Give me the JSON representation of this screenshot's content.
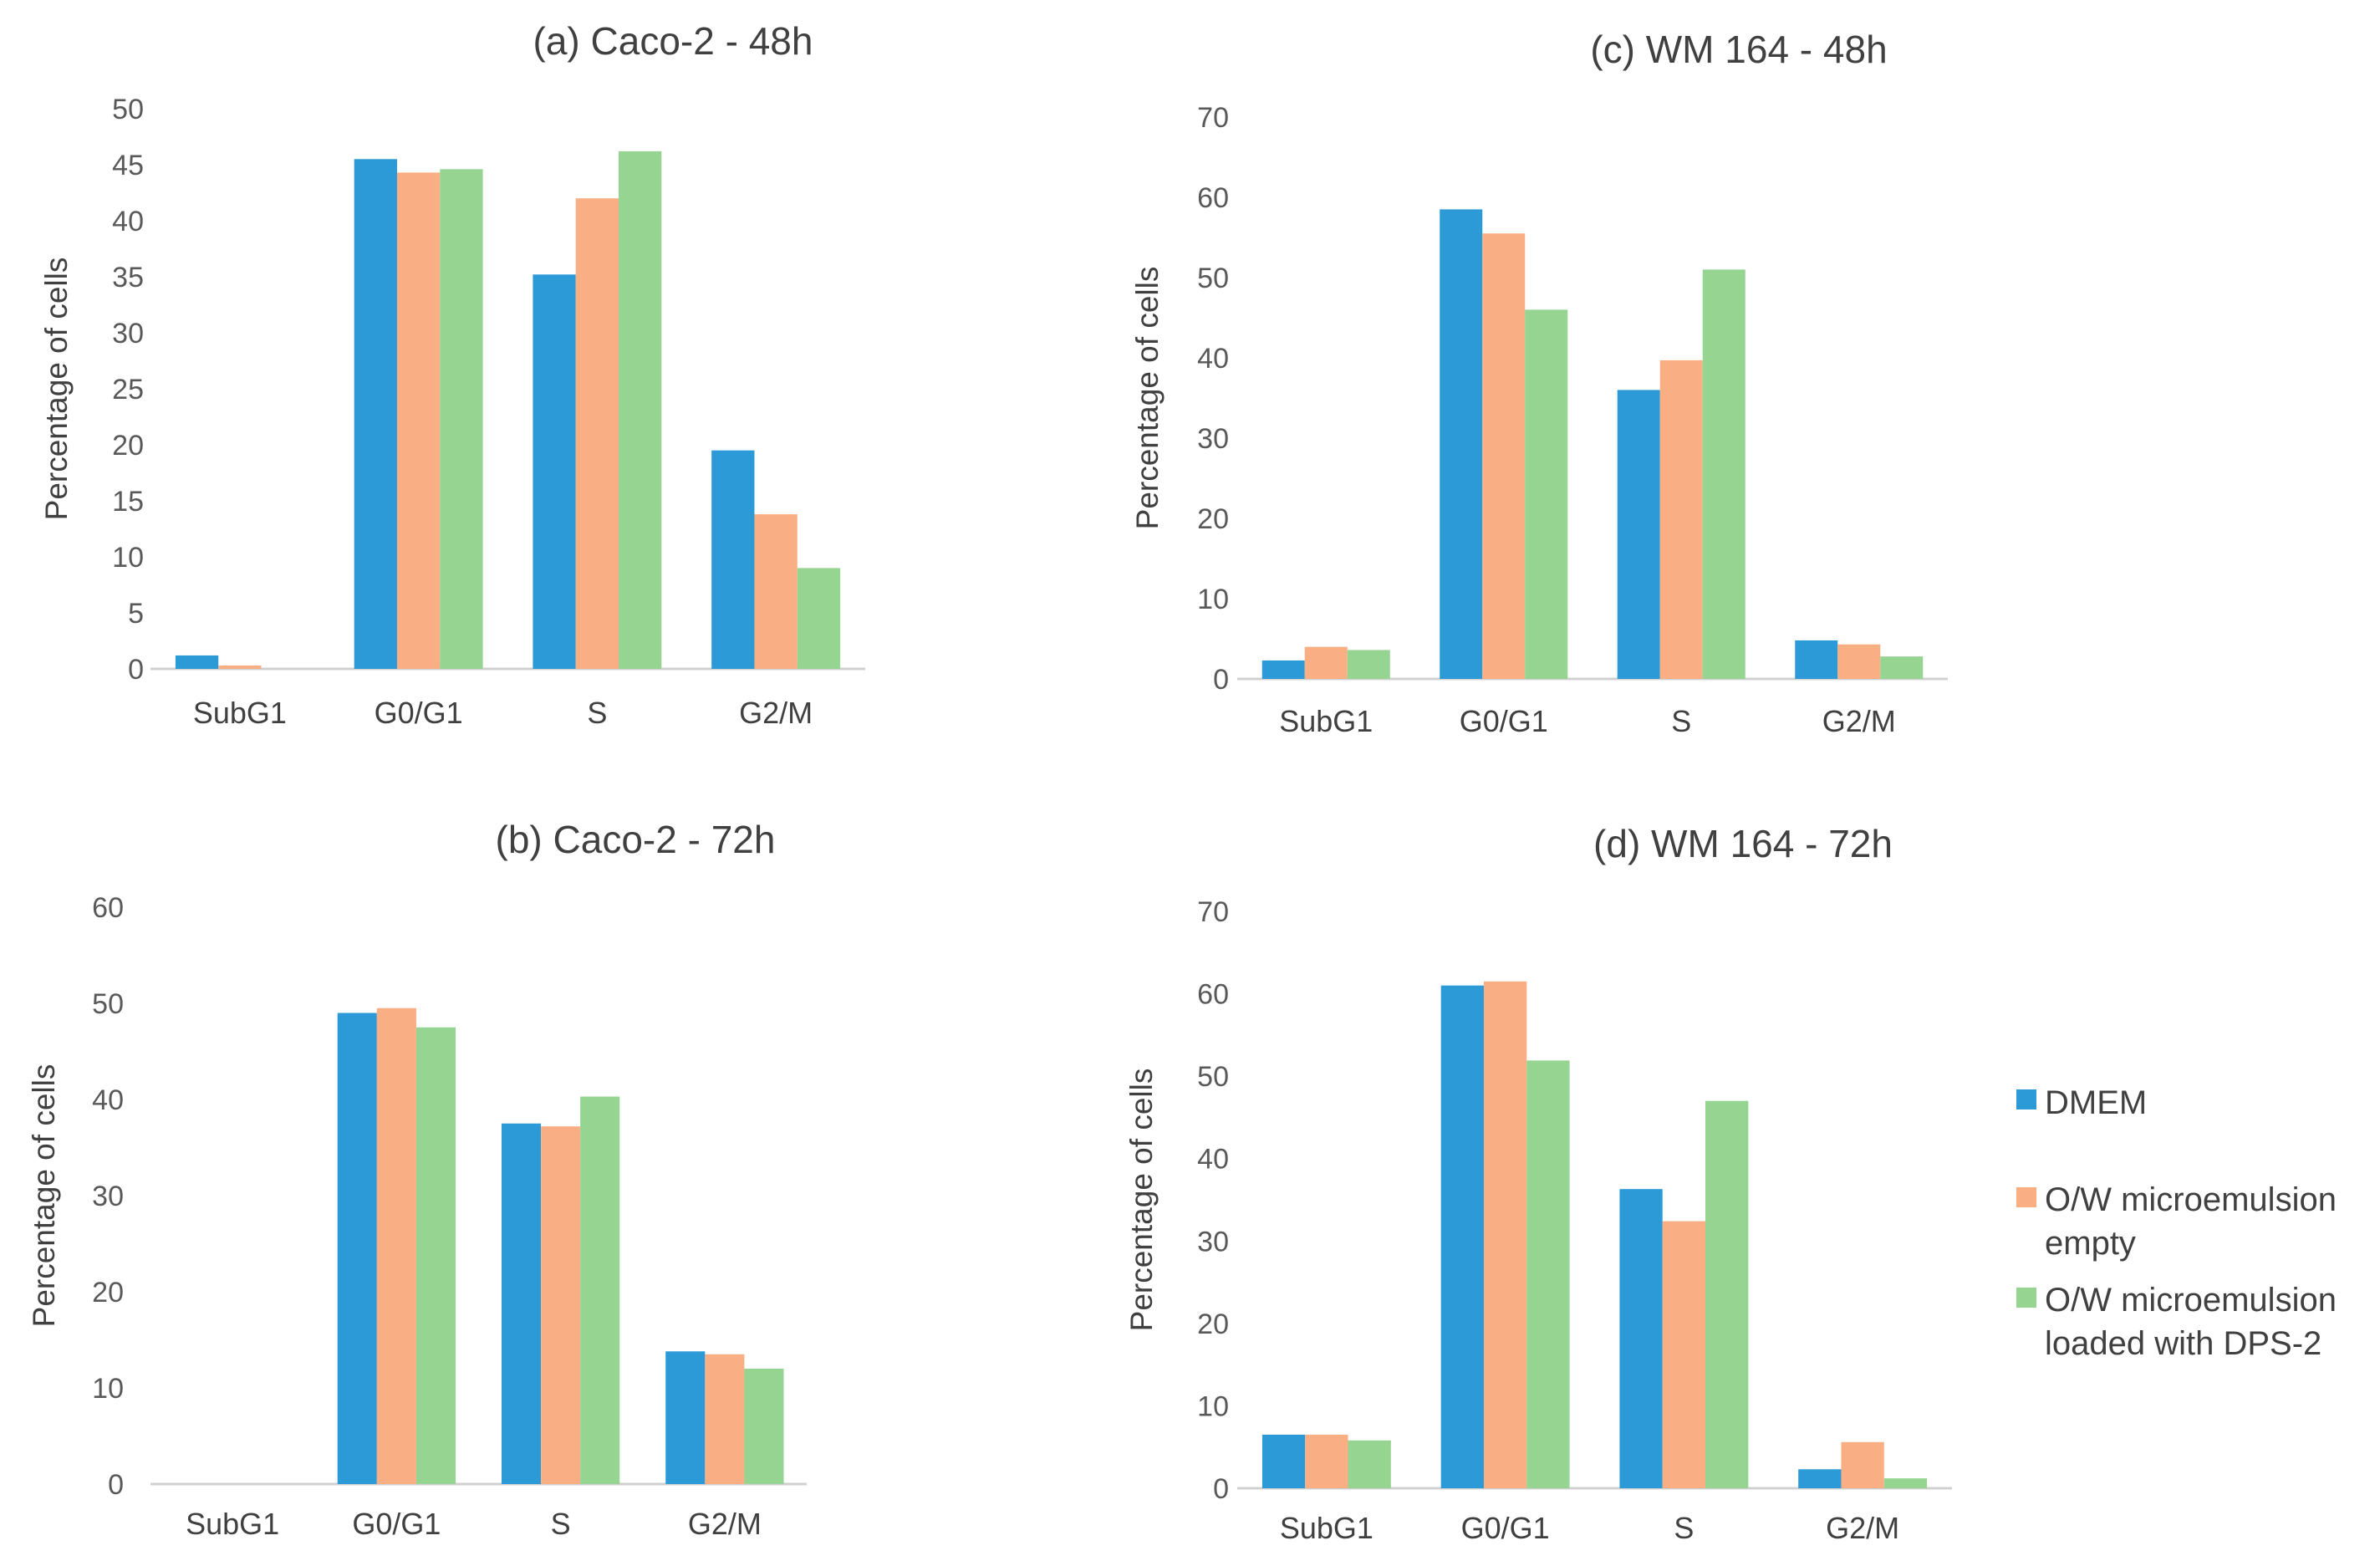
{
  "figure": {
    "legend": [
      {
        "key": "dmem",
        "lines": [
          "DMEM"
        ],
        "color": "#2b9ad6"
      },
      {
        "key": "empty",
        "lines": [
          "O/W microemulsion",
          "empty"
        ],
        "color": "#f9ae84"
      },
      {
        "key": "loaded",
        "lines": [
          "O/W microemulsion",
          "loaded with DPS-2"
        ],
        "color": "#95d491"
      }
    ]
  },
  "chart_data": [
    {
      "id": "a",
      "type": "bar",
      "title": "(a) Caco-2 - 48h",
      "xlabel": "",
      "ylabel": "Percentage of cells",
      "ylim": [
        0,
        50
      ],
      "yticks": [
        0,
        5,
        10,
        15,
        20,
        25,
        30,
        35,
        40,
        45,
        50
      ],
      "categories": [
        "SubG1",
        "G0/G1",
        "S",
        "G2/M"
      ],
      "series": [
        {
          "name": "DMEM",
          "color": "#2b9ad6",
          "values": [
            1.2,
            45.5,
            35.2,
            19.5
          ]
        },
        {
          "name": "O/W microemulsion empty",
          "color": "#f9ae84",
          "values": [
            0.3,
            44.3,
            42.0,
            13.8
          ]
        },
        {
          "name": "O/W microemulsion loaded with DPS-2",
          "color": "#95d491",
          "values": [
            0.0,
            44.6,
            46.2,
            9.0
          ]
        }
      ]
    },
    {
      "id": "b",
      "type": "bar",
      "title": "(b) Caco-2 - 72h",
      "xlabel": "",
      "ylabel": "Percentage of cells",
      "ylim": [
        0,
        60
      ],
      "yticks": [
        0,
        10,
        20,
        30,
        40,
        50,
        60
      ],
      "categories": [
        "SubG1",
        "G0/G1",
        "S",
        "G2/M"
      ],
      "series": [
        {
          "name": "DMEM",
          "color": "#2b9ad6",
          "values": [
            0.0,
            49.0,
            37.5,
            13.8
          ]
        },
        {
          "name": "O/W microemulsion empty",
          "color": "#f9ae84",
          "values": [
            0.0,
            49.5,
            37.2,
            13.5
          ]
        },
        {
          "name": "O/W microemulsion loaded with DPS-2",
          "color": "#95d491",
          "values": [
            0.0,
            47.5,
            40.3,
            12.0
          ]
        }
      ]
    },
    {
      "id": "c",
      "type": "bar",
      "title": "(c) WM 164 - 48h",
      "xlabel": "",
      "ylabel": "Percentage of cells",
      "ylim": [
        0,
        70
      ],
      "yticks": [
        0,
        10,
        20,
        30,
        40,
        50,
        60,
        70
      ],
      "categories": [
        "SubG1",
        "G0/G1",
        "S",
        "G2/M"
      ],
      "series": [
        {
          "name": "DMEM",
          "color": "#2b9ad6",
          "values": [
            2.3,
            58.5,
            36.0,
            4.8
          ]
        },
        {
          "name": "O/W microemulsion empty",
          "color": "#f9ae84",
          "values": [
            4.0,
            55.5,
            39.7,
            4.3
          ]
        },
        {
          "name": "O/W microemulsion loaded with DPS-2",
          "color": "#95d491",
          "values": [
            3.6,
            46.0,
            51.0,
            2.8
          ]
        }
      ]
    },
    {
      "id": "d",
      "type": "bar",
      "title": "(d) WM 164 - 72h",
      "xlabel": "",
      "ylabel": "Percentage of cells",
      "ylim": [
        0,
        70
      ],
      "yticks": [
        0,
        10,
        20,
        30,
        40,
        50,
        60,
        70
      ],
      "categories": [
        "SubG1",
        "G0/G1",
        "S",
        "G2/M"
      ],
      "series": [
        {
          "name": "DMEM",
          "color": "#2b9ad6",
          "values": [
            6.5,
            61.0,
            36.3,
            2.3
          ]
        },
        {
          "name": "O/W microemulsion empty",
          "color": "#f9ae84",
          "values": [
            6.5,
            61.5,
            32.4,
            5.6
          ]
        },
        {
          "name": "O/W microemulsion loaded with DPS-2",
          "color": "#95d491",
          "values": [
            5.8,
            51.9,
            47.0,
            1.2
          ]
        }
      ]
    }
  ]
}
